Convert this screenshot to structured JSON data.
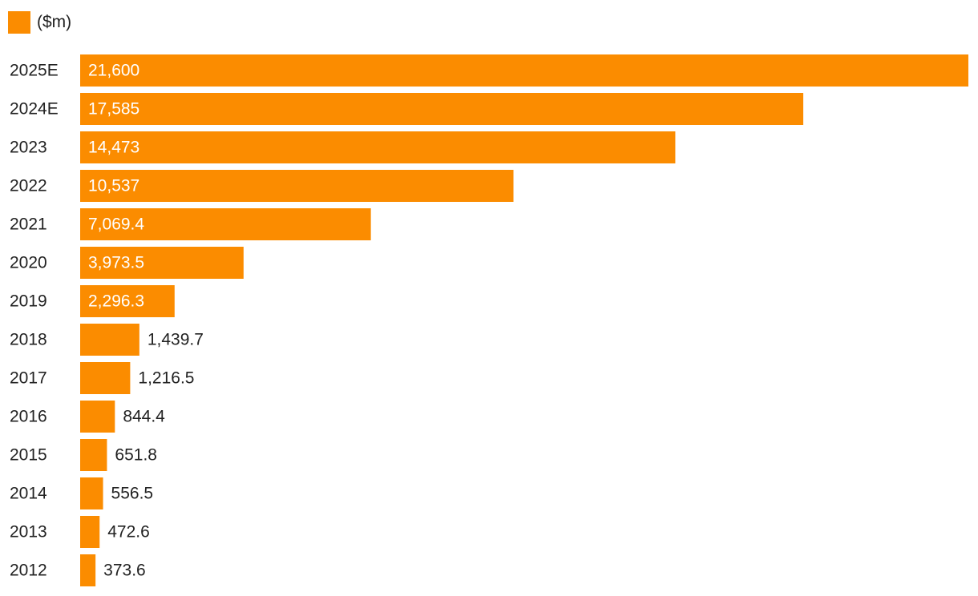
{
  "colors": {
    "bar": "#FB8C00",
    "text_dark": "#222222",
    "text_on_bar": "#FFFFFF"
  },
  "chart_data": {
    "type": "bar",
    "orientation": "horizontal",
    "categories": [
      "2025E",
      "2024E",
      "2023",
      "2022",
      "2021",
      "2020",
      "2019",
      "2018",
      "2017",
      "2016",
      "2015",
      "2014",
      "2013",
      "2012"
    ],
    "series": [
      {
        "name": "($m)",
        "values": [
          21600,
          17585,
          14473,
          10537,
          7069.4,
          3973.5,
          2296.3,
          1439.7,
          1216.5,
          844.4,
          651.8,
          556.5,
          472.6,
          373.6
        ]
      }
    ],
    "value_labels": [
      "21,600",
      "17,585",
      "14,473",
      "10,537",
      "7,069.4",
      "3,973.5",
      "2,296.3",
      "1,439.7",
      "1,216.5",
      "844.4",
      "651.8",
      "556.5",
      "472.6",
      "373.6"
    ],
    "xlim": [
      0,
      21600
    ],
    "legend_position": "top-left",
    "grid": false
  }
}
